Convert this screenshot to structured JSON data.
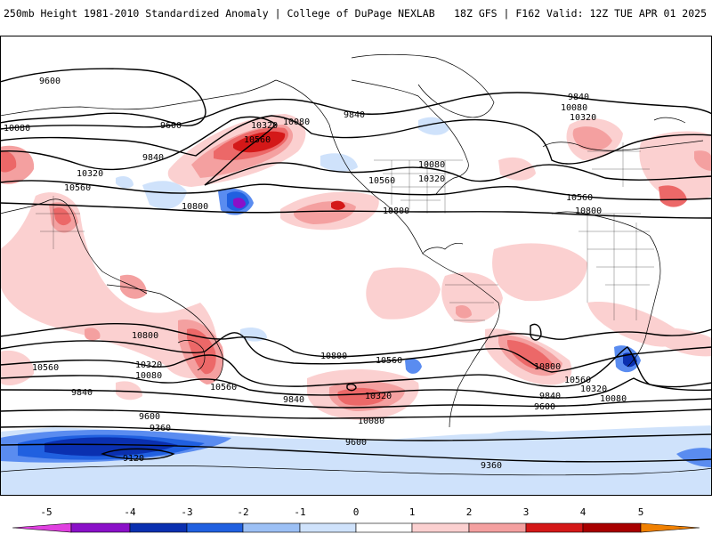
{
  "header": {
    "left": "250mb Height 1981-2010 Standardized Anomaly | College of DuPage NEXLAB",
    "right": "18Z GFS | F162 Valid: 12Z TUE APR 01 2025"
  },
  "contour_labels": {
    "n9600a": "9600",
    "n9600b": "9600",
    "n9840a": "9840",
    "n9840b": "9840",
    "n9840c": "9840",
    "n10080a": "10080",
    "n10080b": "10080",
    "n10080c": "10080",
    "n10080d": "10080",
    "n10320a": "10320",
    "n10320b": "10320",
    "n10320c": "10320",
    "n10320d": "10320",
    "n10560a": "10560",
    "n10560b": "10560",
    "n10560c": "10560",
    "n10560d": "10560",
    "n10800a": "10800",
    "n10800b": "10800",
    "n10800c": "10800",
    "s10800a": "10800",
    "s10800b": "10800",
    "s10800c": "10800",
    "s10560a": "10560",
    "s10560b": "10560",
    "s10560c": "10560",
    "s10560d": "10560",
    "s10320a": "10320",
    "s10320b": "10320",
    "s10320c": "10320",
    "s10080a": "10080",
    "s10080b": "10080",
    "s10080c": "10080",
    "s9840a": "9840",
    "s9840b": "9840",
    "s9840c": "9840",
    "s9600a": "9600",
    "s9600b": "9600",
    "s9600c": "9600",
    "s9360a": "9360",
    "s9360b": "9360",
    "s9120a": "9120"
  },
  "colorbar": {
    "ticks": [
      "-5",
      "-4",
      "-3",
      "-2",
      "-1",
      "0",
      "1",
      "2",
      "3",
      "4",
      "5"
    ],
    "colors": {
      "neg5": "#e040e0",
      "neg45": "#8a10c8",
      "neg4": "#0a30b0",
      "neg3": "#2060e0",
      "neg25": "#5a8cf0",
      "neg2": "#9cc0f5",
      "neg1": "#cfe2fb",
      "zero": "#ffffff",
      "pos1": "#fbd0d0",
      "pos2": "#f4a0a0",
      "pos25": "#ec6868",
      "pos3": "#d41818",
      "pos4": "#a80000",
      "pos45": "#f08000",
      "pos5": "#f8b000"
    }
  }
}
